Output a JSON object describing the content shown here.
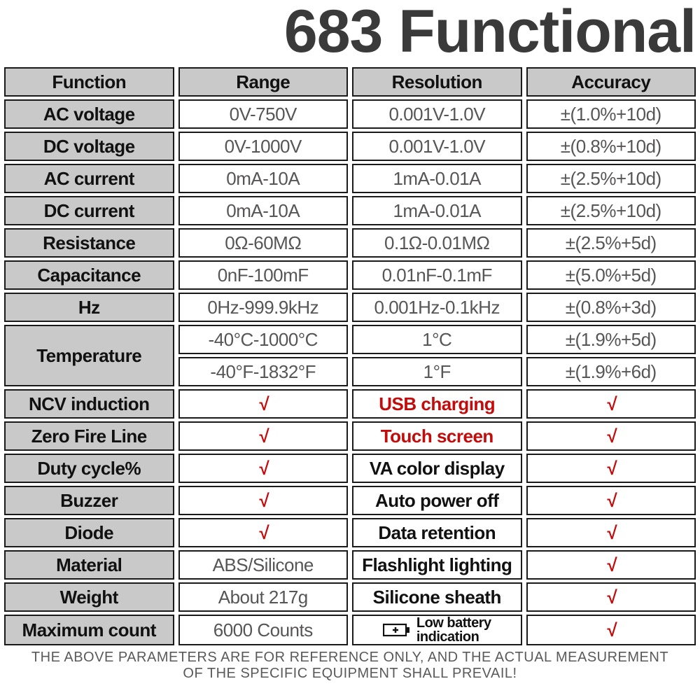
{
  "title": "683 Functional",
  "columns": [
    "Function",
    "Range",
    "Resolution",
    "Accuracy"
  ],
  "rows": [
    {
      "fn": "AC voltage",
      "range": "0V-750V",
      "res": "0.001V-1.0V",
      "acc": "±(1.0%+10d)"
    },
    {
      "fn": "DC voltage",
      "range": "0V-1000V",
      "res": "0.001V-1.0V",
      "acc": "±(0.8%+10d)"
    },
    {
      "fn": "AC current",
      "range": "0mA-10A",
      "res": "1mA-0.01A",
      "acc": "±(2.5%+10d)"
    },
    {
      "fn": "DC current",
      "range": "0mA-10A",
      "res": "1mA-0.01A",
      "acc": "±(2.5%+10d)"
    },
    {
      "fn": "Resistance",
      "range": "0Ω-60MΩ",
      "res": "0.1Ω-0.01MΩ",
      "acc": "±(2.5%+5d)"
    },
    {
      "fn": "Capacitance",
      "range": "0nF-100mF",
      "res": "0.01nF-0.1mF",
      "acc": "±(5.0%+5d)"
    },
    {
      "fn": "Hz",
      "range": "0Hz-999.9kHz",
      "res": "0.001Hz-0.1kHz",
      "acc": "±(0.8%+3d)"
    }
  ],
  "temperature": {
    "label": "Temperature",
    "c": {
      "range": "-40°C-1000°C",
      "res": "1°C",
      "acc": "±(1.9%+5d)"
    },
    "f": {
      "range": "-40°F-1832°F",
      "res": "1°F",
      "acc": "±(1.9%+6d)"
    }
  },
  "features": [
    {
      "label": "NCV induction",
      "c2": "√",
      "c2check": true,
      "c3": "USB charging",
      "c3red": true,
      "c4": "√"
    },
    {
      "label": "Zero Fire Line",
      "c2": "√",
      "c2check": true,
      "c3": "Touch screen",
      "c3red": true,
      "c4": "√"
    },
    {
      "label": "Duty cycle%",
      "c2": "√",
      "c2check": true,
      "c3": "VA color display",
      "c3red": false,
      "c4": "√"
    },
    {
      "label": "Buzzer",
      "c2": "√",
      "c2check": true,
      "c3": "Auto power off",
      "c3red": false,
      "c4": "√"
    },
    {
      "label": "Diode",
      "c2": "√",
      "c2check": true,
      "c3": "Data retention",
      "c3red": false,
      "c4": "√"
    },
    {
      "label": "Material",
      "c2": "ABS/Silicone",
      "c2check": false,
      "c3": "Flashlight lighting",
      "c3red": false,
      "c4": "√"
    },
    {
      "label": "Weight",
      "c2": "About 217g",
      "c2check": false,
      "c3": "Silicone sheath",
      "c3red": false,
      "c4": "√"
    }
  ],
  "maxcount": {
    "label": "Maximum count",
    "value": "6000 Counts",
    "battery_l1": "Low battery",
    "battery_l2": "indication",
    "c4": "√"
  },
  "footer_l1": "THE ABOVE PARAMETERS ARE FOR REFERENCE ONLY, AND THE ACTUAL MEASUREMENT",
  "footer_l2": "OF THE SPECIFIC EQUIPMENT SHALL PREVAIL!",
  "colors": {
    "header_bg": "#c9c9c9",
    "border": "#1a1a1a",
    "text_dark": "#111111",
    "text_light": "#575555",
    "red": "#c40b0b",
    "title": "#3a3a3a"
  },
  "check_glyph": "√"
}
